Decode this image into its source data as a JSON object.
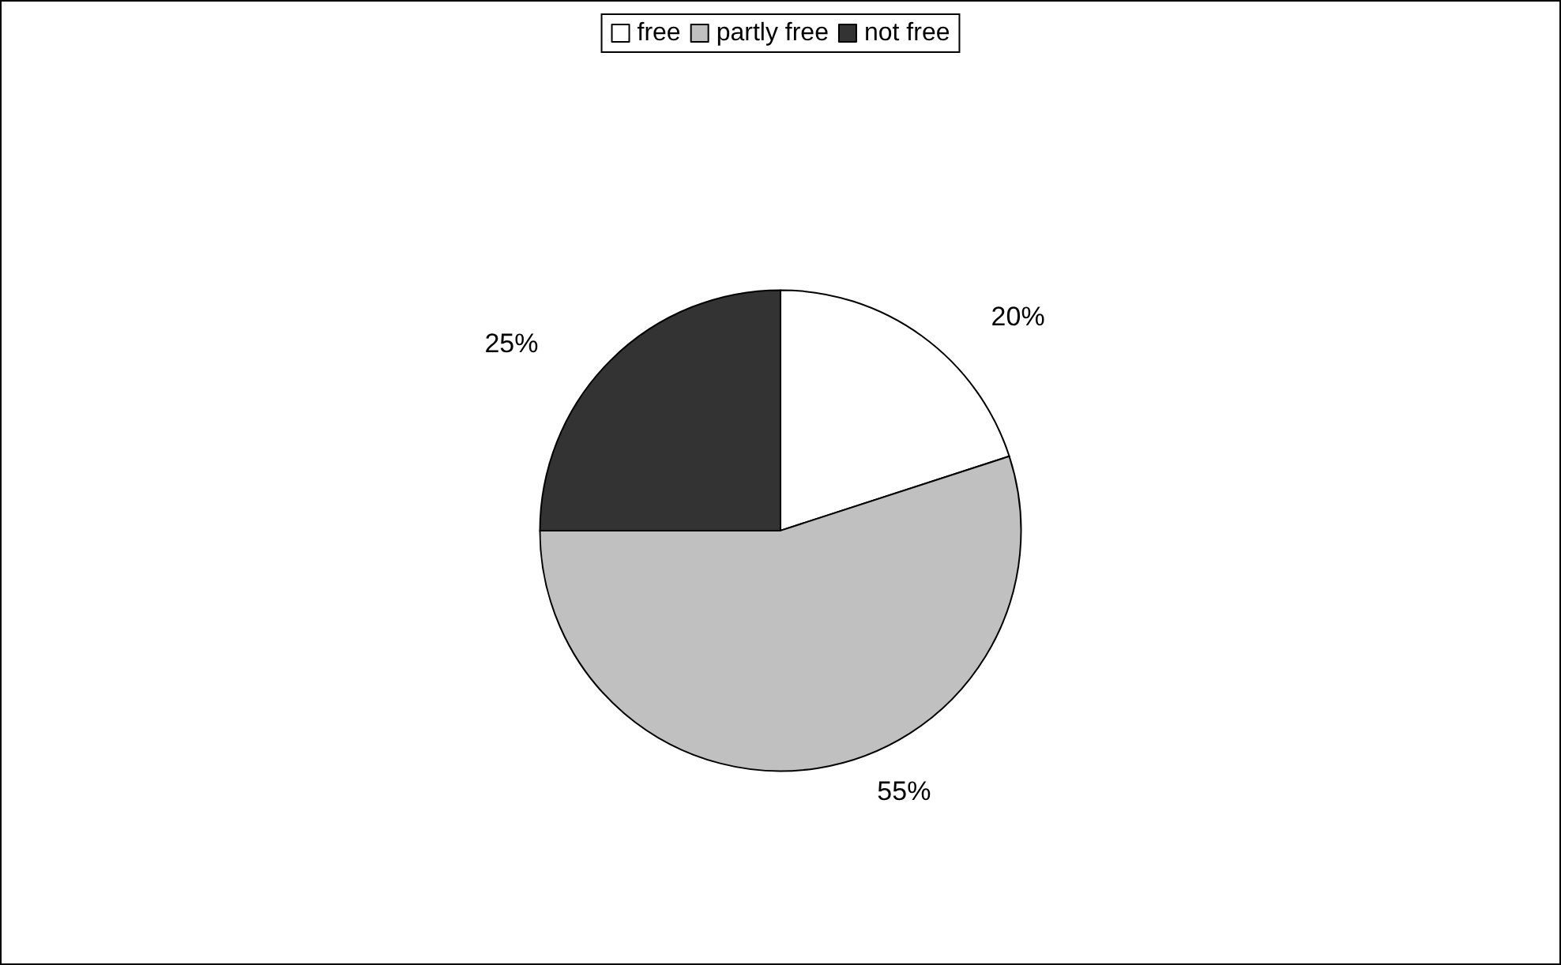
{
  "chart_data": {
    "type": "pie",
    "categories": [
      "free",
      "partly free",
      "not free"
    ],
    "values": [
      20,
      55,
      25
    ],
    "colors": [
      "#ffffff",
      "#c0c0c0",
      "#333333"
    ],
    "value_labels": [
      "20%",
      "55%",
      "25%"
    ],
    "legend": "top"
  }
}
